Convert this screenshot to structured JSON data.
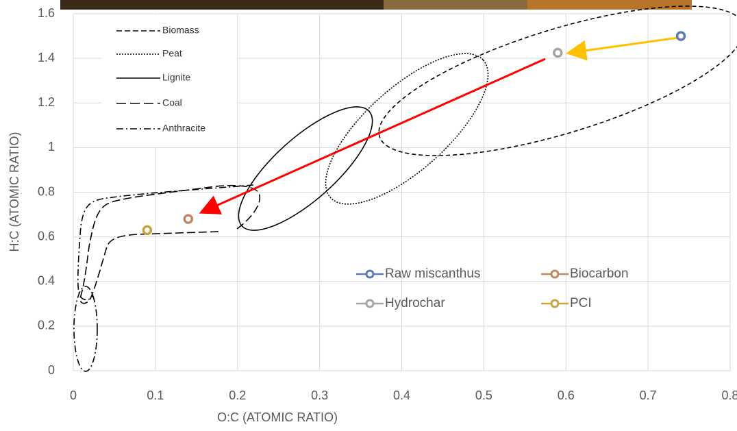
{
  "chart_data": {
    "type": "scatter",
    "xlabel": "O:C (ATOMIC RATIO)",
    "ylabel": "H:C (ATOMIC RATIO)",
    "xlim": [
      0,
      0.8
    ],
    "ylim": [
      0,
      1.6
    ],
    "xticks": [
      0,
      0.1,
      0.2,
      0.3,
      0.4,
      0.5,
      0.6,
      0.7,
      0.8
    ],
    "yticks": [
      0,
      0.2,
      0.4,
      0.6,
      0.8,
      1,
      1.2,
      1.4,
      1.6
    ],
    "grid": true,
    "region_legend": [
      "Biomass",
      "Peat",
      "Lignite",
      "Coal",
      "Anthracite"
    ],
    "series": [
      {
        "name": "Raw miscanthus",
        "color": "#5b7bb5",
        "x": [
          0.74
        ],
        "values": [
          1.5
        ]
      },
      {
        "name": "Biocarbon",
        "color": "#c4865c",
        "x": [
          0.14
        ],
        "values": [
          0.68
        ]
      },
      {
        "name": "Hydrochar",
        "color": "#a5a5a5",
        "x": [
          0.59
        ],
        "values": [
          1.425
        ]
      },
      {
        "name": "PCI",
        "color": "#c9a344",
        "x": [
          0.09
        ],
        "values": [
          0.63
        ]
      }
    ]
  }
}
